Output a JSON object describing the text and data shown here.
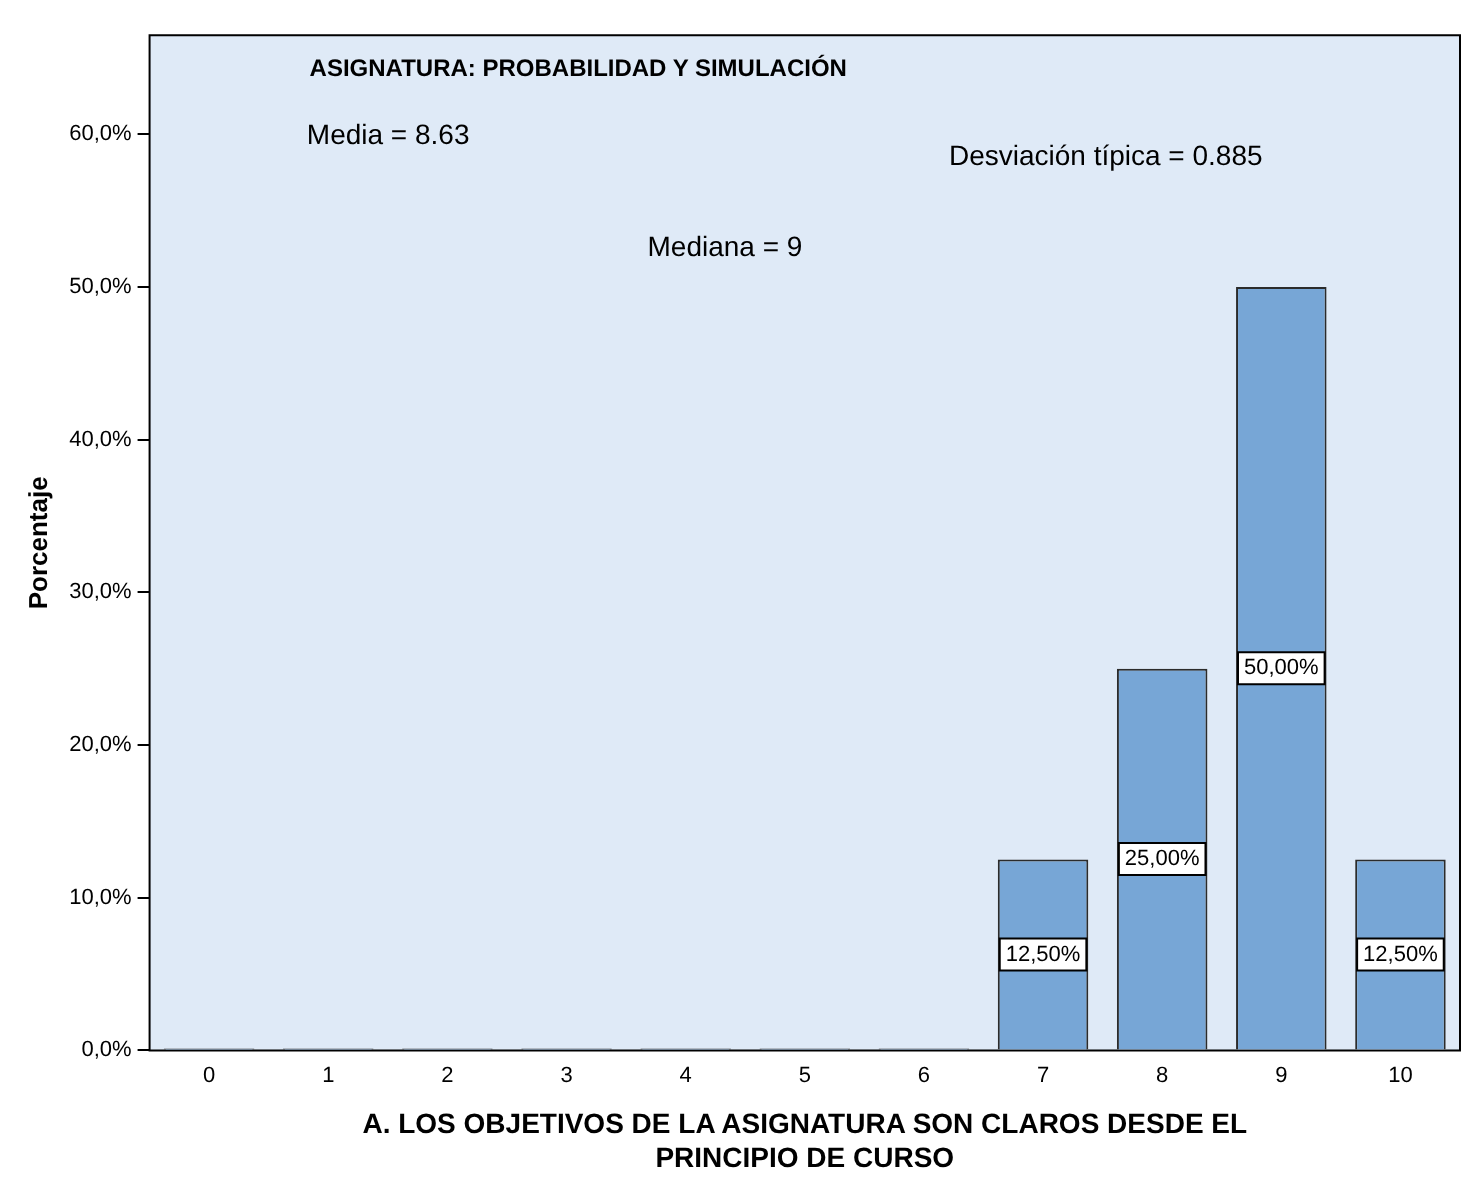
{
  "chart_data": {
    "type": "bar",
    "title": "ASIGNATURA: PROBABILIDAD Y SIMULACIÓN",
    "xlabel": "A. LOS OBJETIVOS DE LA ASIGNATURA SON CLAROS DESDE EL PRINCIPIO DE CURSO",
    "ylabel": "Porcentaje",
    "categories": [
      "0",
      "1",
      "2",
      "3",
      "4",
      "5",
      "6",
      "7",
      "8",
      "9",
      "10"
    ],
    "values": [
      0,
      0,
      0,
      0,
      0,
      0,
      0,
      12.5,
      25,
      50,
      12.5
    ],
    "value_labels": [
      null,
      null,
      null,
      null,
      null,
      null,
      null,
      "12,50%",
      "25,00%",
      "50,00%",
      "12,50%"
    ],
    "color": "#77a6d6",
    "ylim": [
      0,
      66.5
    ],
    "yticks": [
      {
        "value": 0,
        "label": "0,0%"
      },
      {
        "value": 10,
        "label": "10,0%"
      },
      {
        "value": 20,
        "label": "20,0%"
      },
      {
        "value": 30,
        "label": "30,0%"
      },
      {
        "value": 40,
        "label": "40,0%"
      },
      {
        "value": 50,
        "label": "50,0%"
      },
      {
        "value": 60,
        "label": "60,0%"
      }
    ],
    "annotations": [
      "Media = 8.63",
      "Desviación típica = 0.885",
      "Mediana = 9"
    ],
    "grid": false,
    "legend": false
  }
}
